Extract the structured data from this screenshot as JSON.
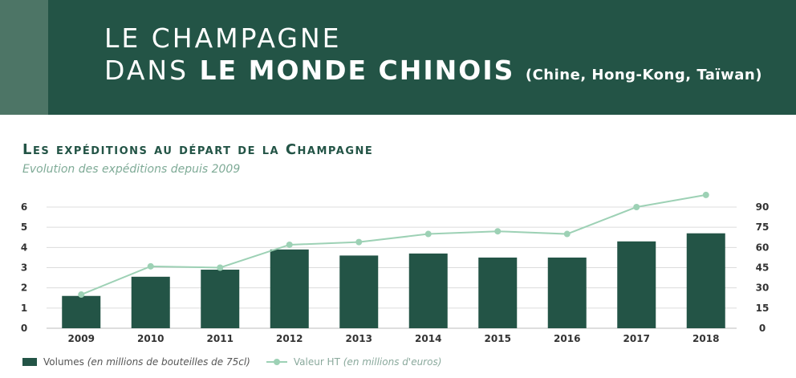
{
  "banner": {
    "line1": "LE CHAMPAGNE",
    "line2_prefix": "DANS",
    "line2_bold": "LE MONDE CHINOIS",
    "line2_paren": "(Chine, Hong-Kong, Taïwan)"
  },
  "section": {
    "title": "Les expéditions au départ de la Champagne",
    "subtitle": "Evolution des expéditions depuis 2009"
  },
  "legend": {
    "volumes_label": "Volumes",
    "volumes_unit": "(en millions de bouteilles de 75cl)",
    "valeur_label": "Valeur HT",
    "valeur_unit": "(en millions d'euros)"
  },
  "colors": {
    "bar": "#235446",
    "line": "#9dd1b5",
    "banner": "#235446"
  },
  "chart_data": {
    "type": "bar",
    "categories": [
      "2009",
      "2010",
      "2011",
      "2012",
      "2013",
      "2014",
      "2015",
      "2016",
      "2017",
      "2018"
    ],
    "series": [
      {
        "name": "Volumes",
        "type": "bar",
        "axis": "left",
        "values": [
          1.6,
          2.55,
          2.9,
          3.9,
          3.6,
          3.7,
          3.5,
          3.5,
          4.3,
          4.7
        ]
      },
      {
        "name": "Valeur HT",
        "type": "line",
        "axis": "right",
        "values": [
          25,
          46,
          45,
          62,
          64,
          70,
          72,
          70,
          90,
          99
        ]
      }
    ],
    "yleft_ticks": [
      "0",
      "1",
      "2",
      "3",
      "4",
      "5",
      "6"
    ],
    "yleft_lim": [
      0,
      6
    ],
    "yright_ticks": [
      "0",
      "15",
      "30",
      "45",
      "60",
      "75",
      "90"
    ],
    "yright_lim": [
      0,
      90
    ],
    "grid": true,
    "legend_position": "bottom-left"
  }
}
